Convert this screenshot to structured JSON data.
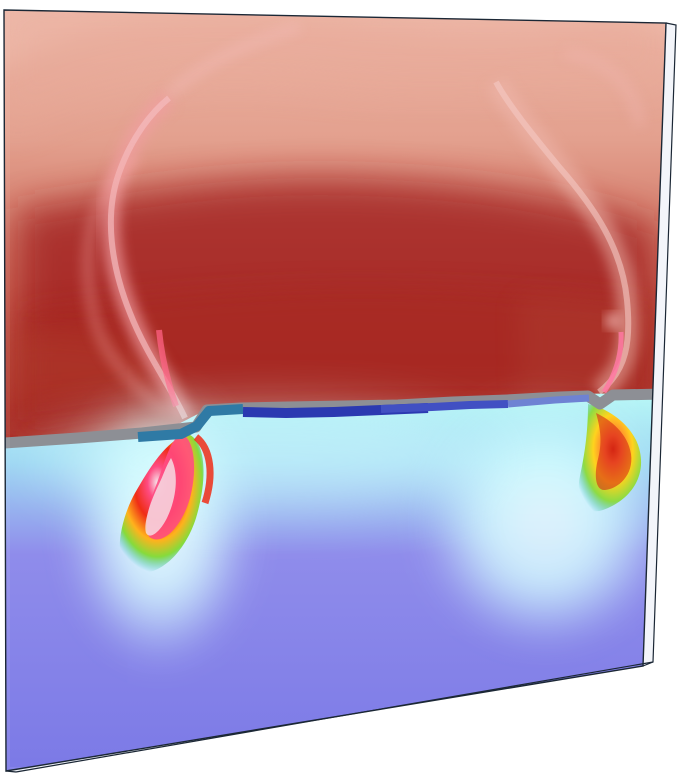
{
  "scene": {
    "background_color": "#ffffff",
    "upper_region": {
      "colors": {
        "top_pink": "#efb9a9",
        "mid_rose": "#d37c6e",
        "deep_red": "#9f1f1f",
        "lower_orange_red": "#ad3218"
      }
    },
    "interface": {
      "colors": {
        "gray": "#8d8f95",
        "steel_blue": "#2f7aa5",
        "royal_blue": "#2b39b1",
        "mid_blue": "#4150c3",
        "light_blue": "#6e82d3"
      }
    },
    "lower_region": {
      "colors": {
        "cyan_glow": "#d9ffff",
        "cyan": "#96eaee",
        "violet": "#8f8ceb",
        "blue_violet": "#7b79e6"
      }
    },
    "plumes": [
      {
        "id": "left",
        "colors": [
          "#ff4b82",
          "#f5e8ec",
          "#ef2d16",
          "#ffb21d",
          "#86db3b",
          "#20b8c4"
        ]
      },
      {
        "id": "right",
        "colors": [
          "#ff6f35",
          "#d42613",
          "#ffd31d",
          "#8edb43",
          "#24b6c7"
        ]
      }
    ],
    "frame": {
      "edge_color": "#1b2735",
      "slab_color": "#f3f5fa"
    }
  }
}
